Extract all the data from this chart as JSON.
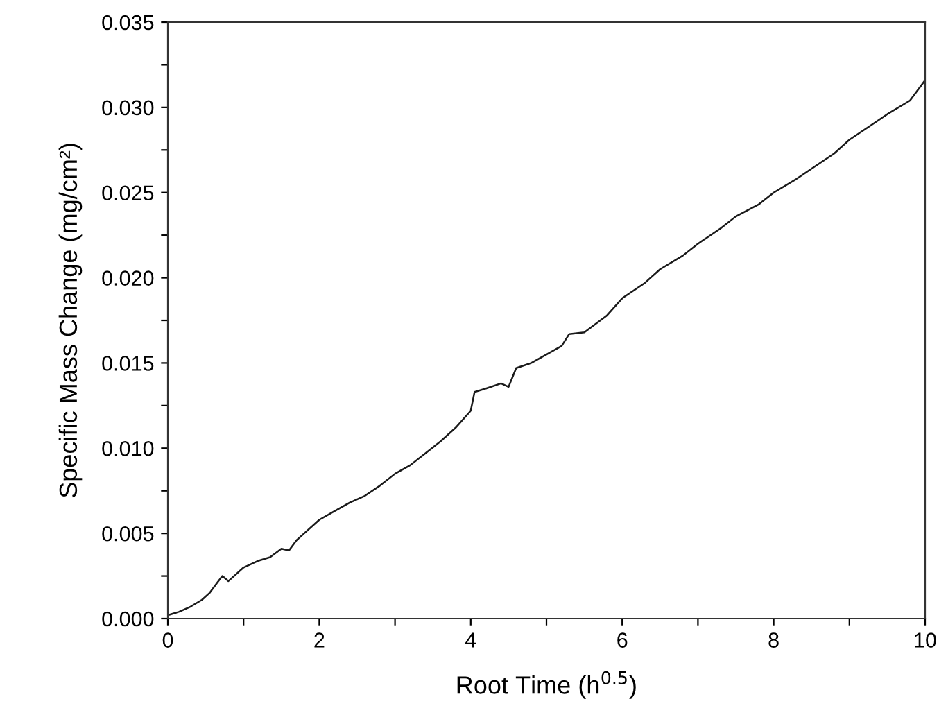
{
  "chart_data": {
    "type": "line",
    "xlabel": "Root Time (h$^{0.5}$)",
    "ylabel": "Specific Mass Change (mg/cm²)",
    "xlim": [
      0,
      10
    ],
    "ylim": [
      0,
      0.035
    ],
    "xticks": [
      0,
      {
        "value": 1,
        "label": null
      },
      2,
      {
        "value": 3,
        "label": null
      },
      4,
      {
        "value": 5,
        "label": null
      },
      6,
      {
        "value": 7,
        "label": null
      },
      8,
      {
        "value": 9,
        "label": null
      },
      10
    ],
    "yticks": [
      {
        "value": 0,
        "label": "0.000"
      },
      {
        "value": 0.0025,
        "label": null
      },
      {
        "value": 0.005,
        "label": "0.005"
      },
      {
        "value": 0.0075,
        "label": null
      },
      {
        "value": 0.01,
        "label": "0.010"
      },
      {
        "value": 0.0125,
        "label": null
      },
      {
        "value": 0.015,
        "label": "0.015"
      },
      {
        "value": 0.0175,
        "label": null
      },
      {
        "value": 0.02,
        "label": "0.020"
      },
      {
        "value": 0.0225,
        "label": null
      },
      {
        "value": 0.025,
        "label": "0.025"
      },
      {
        "value": 0.0275,
        "label": null
      },
      {
        "value": 0.03,
        "label": "0.030"
      },
      {
        "value": 0.0325,
        "label": null
      },
      {
        "value": 0.035,
        "label": "0.035"
      }
    ],
    "grid": false,
    "marker": "none",
    "line_style": "solid",
    "series": [
      {
        "color": "#1a1a1a",
        "x": [
          0,
          0.15,
          0.3,
          0.45,
          0.55,
          0.65,
          0.72,
          0.8,
          0.9,
          1.0,
          1.1,
          1.2,
          1.35,
          1.5,
          1.6,
          1.7,
          1.8,
          2.0,
          2.2,
          2.4,
          2.6,
          2.8,
          3.0,
          3.2,
          3.4,
          3.6,
          3.8,
          4.0,
          4.05,
          4.2,
          4.4,
          4.5,
          4.6,
          4.8,
          5.0,
          5.2,
          5.3,
          5.5,
          5.8,
          6.0,
          6.3,
          6.5,
          6.8,
          7.0,
          7.3,
          7.5,
          7.8,
          8.0,
          8.3,
          8.5,
          8.8,
          9.0,
          9.3,
          9.5,
          9.8,
          10.0
        ],
        "values": [
          0.0002,
          0.0004,
          0.0007,
          0.0011,
          0.0015,
          0.0021,
          0.0025,
          0.0022,
          0.0026,
          0.003,
          0.0032,
          0.0034,
          0.0036,
          0.0041,
          0.004,
          0.0046,
          0.005,
          0.0058,
          0.0063,
          0.0068,
          0.0072,
          0.0078,
          0.0085,
          0.009,
          0.0097,
          0.0104,
          0.0112,
          0.0122,
          0.0133,
          0.0135,
          0.0138,
          0.0136,
          0.0147,
          0.015,
          0.0155,
          0.016,
          0.0167,
          0.0168,
          0.0178,
          0.0188,
          0.0197,
          0.0205,
          0.0213,
          0.022,
          0.0229,
          0.0236,
          0.0243,
          0.025,
          0.0258,
          0.0264,
          0.0273,
          0.0281,
          0.029,
          0.0296,
          0.0304,
          0.0316
        ]
      }
    ]
  }
}
